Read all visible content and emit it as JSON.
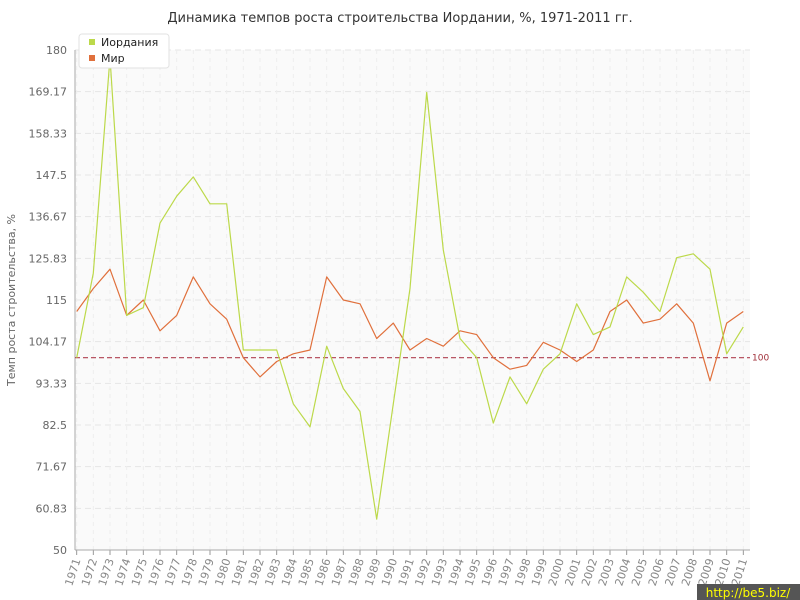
{
  "chart_data": {
    "type": "line",
    "title": "Динамика темпов роста строительства Иордании, %, 1971-2011 гг.",
    "ylabel": "Темп роста строительства, %",
    "xlabel": "",
    "ylim": [
      50,
      180
    ],
    "yticks": [
      "50",
      "60.83",
      "71.67",
      "82.5",
      "93.33",
      "104.17",
      "115",
      "125.83",
      "136.67",
      "147.5",
      "158.33",
      "169.17",
      "180"
    ],
    "categories": [
      "1971",
      "1972",
      "1973",
      "1974",
      "1975",
      "1976",
      "1977",
      "1978",
      "1979",
      "1980",
      "1981",
      "1982",
      "1983",
      "1984",
      "1985",
      "1986",
      "1987",
      "1988",
      "1989",
      "1990",
      "1991",
      "1992",
      "1993",
      "1994",
      "1995",
      "1996",
      "1997",
      "1998",
      "1999",
      "2000",
      "2001",
      "2002",
      "2003",
      "2004",
      "2005",
      "2006",
      "2007",
      "2008",
      "2009",
      "2010",
      "2011"
    ],
    "series": [
      {
        "name": "Иордания",
        "color": "#bcd94a",
        "values": [
          100,
          122,
          178,
          111,
          113,
          135,
          142,
          147,
          140,
          140,
          102,
          102,
          102,
          88,
          82,
          103,
          92,
          86,
          58,
          88,
          118,
          169,
          128,
          105,
          100,
          83,
          95,
          88,
          97,
          101,
          114,
          106,
          108,
          121,
          117,
          112,
          126,
          127,
          123,
          101,
          108
        ]
      },
      {
        "name": "Мир",
        "color": "#e0703c",
        "values": [
          112,
          118,
          123,
          111,
          115,
          107,
          111,
          121,
          114,
          110,
          100,
          95,
          99,
          101,
          102,
          121,
          115,
          114,
          105,
          109,
          102,
          105,
          103,
          107,
          106,
          100,
          97,
          98,
          104,
          102,
          99,
          102,
          112,
          115,
          109,
          110,
          114,
          109,
          94,
          109,
          112
        ]
      }
    ],
    "reference_line": {
      "value": 100,
      "label": "100",
      "color": "#b04050"
    },
    "grid": true,
    "legend_position": "top-left"
  },
  "watermark": "http://be5.biz/"
}
